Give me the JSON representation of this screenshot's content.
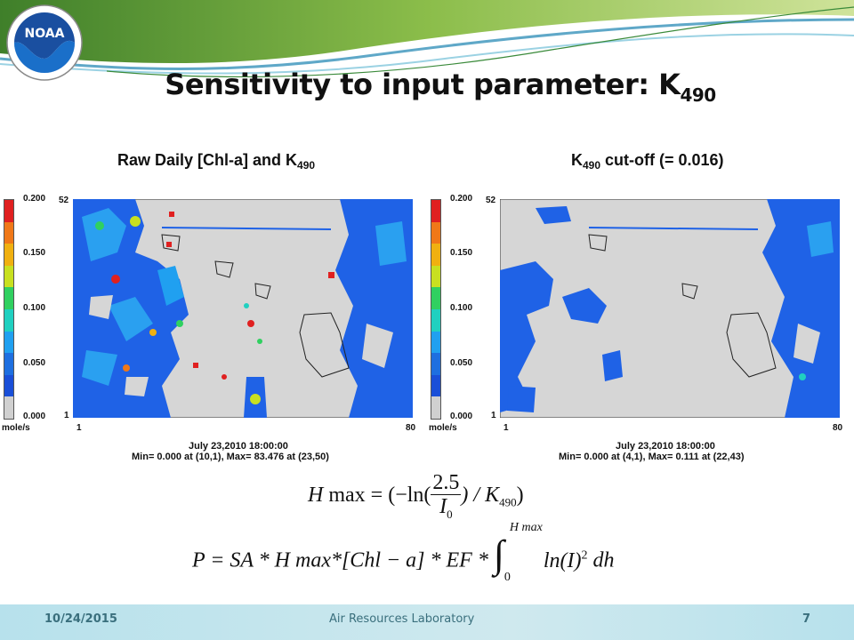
{
  "slide": {
    "title_main": "Sensitivity to input parameter: K",
    "title_sub": "490"
  },
  "logo": {
    "text": "NOAA"
  },
  "left_panel": {
    "title_main": "Raw Daily [Chl-a] and K",
    "title_sub": "490",
    "legend_ticks": [
      "0.200",
      "0.150",
      "0.100",
      "0.050",
      "0.000"
    ],
    "legend_unit": "mole/s",
    "axis_y_top": "52",
    "axis_y_bottom": "1",
    "axis_x_left": "1",
    "axis_x_right": "80",
    "date_line": "July 23,2010 18:00:00",
    "stats_line": "Min=   0.000 at (10,1), Max=  83.476 at (23,50)"
  },
  "right_panel": {
    "title_main": "K",
    "title_sub": "490",
    "title_rest": " cut-off (= 0.016)",
    "legend_ticks": [
      "0.200",
      "0.150",
      "0.100",
      "0.050",
      "0.000"
    ],
    "legend_unit": "mole/s",
    "axis_y_top": "52",
    "axis_y_bottom": "1",
    "axis_x_left": "1",
    "axis_x_right": "80",
    "date_line": "July 23,2010 18:00:00",
    "stats_line": "Min=   0.000 at (4,1), Max=   0.111 at (22,43)"
  },
  "legend_colors": [
    "#e02020",
    "#f07818",
    "#f0b010",
    "#c8e020",
    "#30d060",
    "#20d0c0",
    "#20a0f0",
    "#1e6fe0",
    "#1a4fd8",
    "#d0d0d0"
  ],
  "map_colors": {
    "background": "#d6d6d6",
    "ocean_low": "#1f62e6",
    "ocean_mid": "#2aa0f0"
  },
  "equations": {
    "eq1_lhs": "H",
    "eq1_max": " max",
    "eq1_mid": " = (−ln(",
    "eq1_num": "2.5",
    "eq1_den": "I",
    "eq1_den_sub": "0",
    "eq1_tail": ") / K",
    "eq1_tail_sub": "490",
    "eq1_close": ")",
    "eq2_body": "P = SA * H max*[Chl − a] * EF * ",
    "eq2_upper": "H max",
    "eq2_lower": "0",
    "eq2_integrand": "ln(I)",
    "eq2_power": "2",
    "eq2_dh": " dh"
  },
  "footer": {
    "date": "10/24/2015",
    "center": "Air Resources Laboratory",
    "page": "7"
  }
}
